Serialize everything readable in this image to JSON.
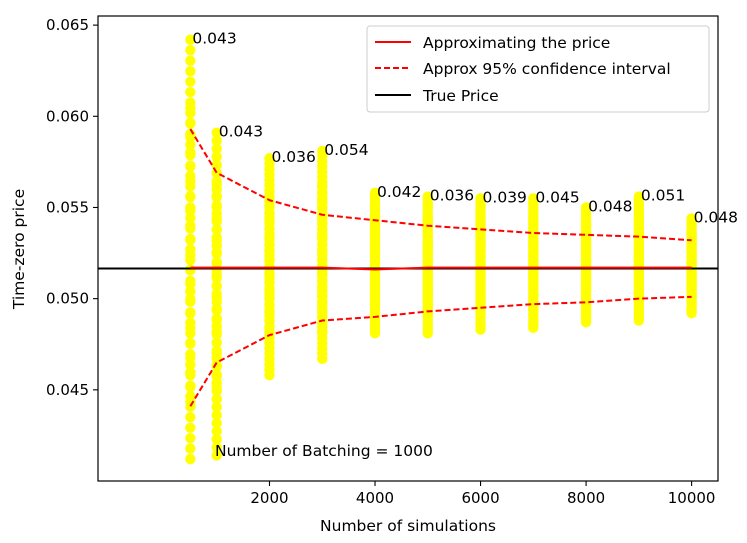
{
  "chart_data": {
    "type": "scatter",
    "xlabel": "Number of simulations",
    "ylabel": "Time-zero price",
    "xlim": [
      -1250,
      10500
    ],
    "ylim": [
      0.04,
      0.0655
    ],
    "x_ticks": [
      2000,
      4000,
      6000,
      8000,
      10000
    ],
    "x_tick_labels": [
      "2000",
      "4000",
      "6000",
      "8000",
      "10000"
    ],
    "y_ticks": [
      0.045,
      0.05,
      0.055,
      0.06,
      0.065
    ],
    "y_tick_labels": [
      "0.045",
      "0.050",
      "0.055",
      "0.060",
      "0.065"
    ],
    "grid": false,
    "legend_position": "top-right",
    "legend": [
      {
        "label": "Approximating the price",
        "color": "#ff0000",
        "style": "solid"
      },
      {
        "label": "Approx 95% confidence interval",
        "color": "#ff0000",
        "style": "dashed"
      },
      {
        "label": "True Price",
        "color": "#000000",
        "style": "solid"
      }
    ],
    "annotation": "Number of Batching = 1000",
    "colors": {
      "points": "#ffff00",
      "price_line": "#ff0000",
      "ci_line": "#ff0000",
      "true_price": "#000000"
    },
    "true_price": 0.05165,
    "sample_sizes": [
      500,
      1000,
      2000,
      3000,
      4000,
      5000,
      6000,
      7000,
      8000,
      9000,
      10000
    ],
    "price_estimate": [
      0.0517,
      0.0517,
      0.0517,
      0.0517,
      0.0516,
      0.0517,
      0.0517,
      0.0517,
      0.0517,
      0.0517,
      0.0517
    ],
    "ci_upper": [
      0.0593,
      0.0569,
      0.0554,
      0.0546,
      0.0543,
      0.054,
      0.0538,
      0.0536,
      0.0535,
      0.0534,
      0.0532
    ],
    "ci_lower": [
      0.0441,
      0.0465,
      0.048,
      0.0488,
      0.049,
      0.0493,
      0.0495,
      0.0497,
      0.0498,
      0.05,
      0.0501
    ],
    "scatter_min": [
      0.0412,
      0.0414,
      0.0458,
      0.0467,
      0.0481,
      0.0481,
      0.0483,
      0.0484,
      0.0487,
      0.0488,
      0.0492
    ],
    "scatter_max": [
      0.0642,
      0.0591,
      0.0577,
      0.0581,
      0.0558,
      0.0556,
      0.0555,
      0.0555,
      0.055,
      0.0556,
      0.0544
    ],
    "point_labels": [
      {
        "x": 500,
        "y": 0.0642,
        "text": "0.043"
      },
      {
        "x": 1000,
        "y": 0.0591,
        "text": "0.043"
      },
      {
        "x": 2000,
        "y": 0.0577,
        "text": "0.036"
      },
      {
        "x": 3000,
        "y": 0.0581,
        "text": "0.054"
      },
      {
        "x": 4000,
        "y": 0.0558,
        "text": "0.042"
      },
      {
        "x": 5000,
        "y": 0.0556,
        "text": "0.036"
      },
      {
        "x": 6000,
        "y": 0.0555,
        "text": "0.039"
      },
      {
        "x": 7000,
        "y": 0.0555,
        "text": "0.045"
      },
      {
        "x": 8000,
        "y": 0.055,
        "text": "0.048"
      },
      {
        "x": 9000,
        "y": 0.0556,
        "text": "0.051"
      },
      {
        "x": 10000,
        "y": 0.0544,
        "text": "0.048"
      }
    ]
  }
}
